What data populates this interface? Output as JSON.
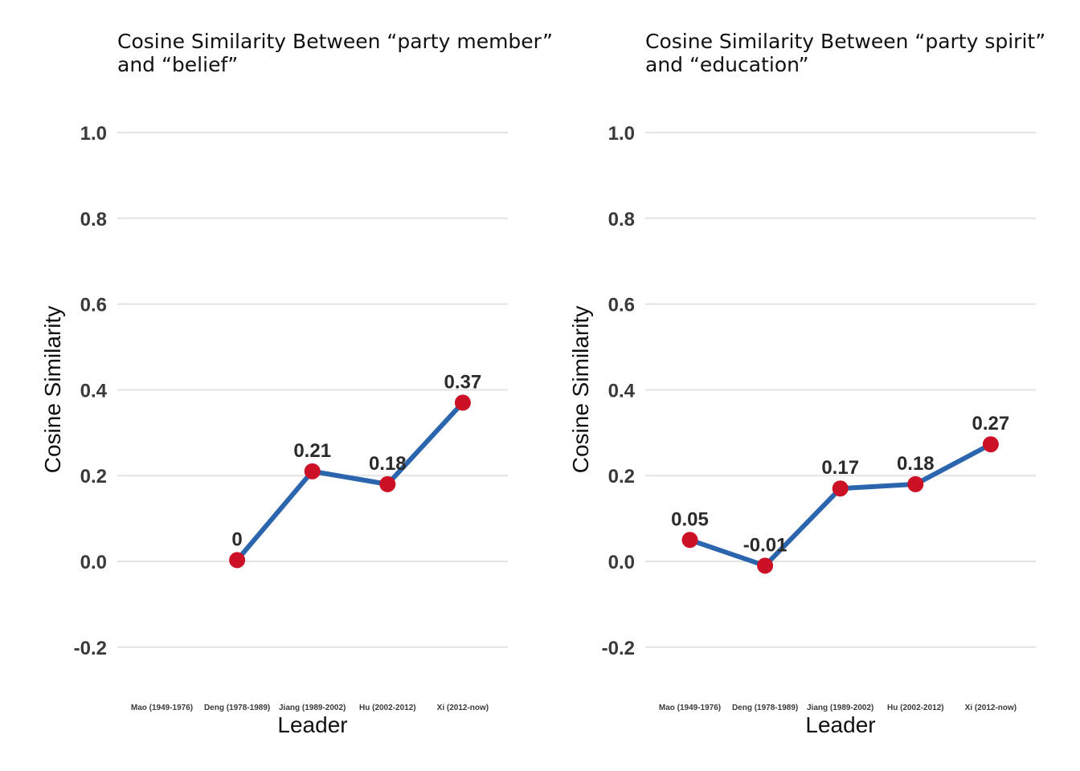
{
  "colors": {
    "line": "#2b65ad",
    "point": "#cc1126",
    "grid": "#e3e3e3"
  },
  "chart_data": [
    {
      "type": "line",
      "title_line1": "Cosine Similarity Between “party member”",
      "title_line2": "and “belief”",
      "xlabel": "Leader",
      "ylabel": "Cosine Similarity",
      "categories": [
        "Mao (1949-1976)",
        "Deng (1978-1989)",
        "Jiang (1989-2002)",
        "Hu (2002-2012)",
        "Xi (2012-now)"
      ],
      "values": [
        null,
        0.003,
        0.21,
        0.18,
        0.37
      ],
      "point_labels": [
        "",
        "0",
        "0.21",
        "0.18",
        "0.37"
      ],
      "yticks": [
        "1.0",
        "0.8",
        "0.6",
        "0.4",
        "0.2",
        "0.0",
        "-0.2"
      ],
      "ylim": [
        -0.3,
        1.1
      ],
      "grid": true
    },
    {
      "type": "line",
      "title_line1": "Cosine Similarity Between “party spirit”",
      "title_line2": "and “education”",
      "xlabel": "Leader",
      "ylabel": "Cosine Similarity",
      "categories": [
        "Mao (1949-1976)",
        "Deng (1978-1989)",
        "Jiang (1989-2002)",
        "Hu (2002-2012)",
        "Xi (2012-now)"
      ],
      "values": [
        0.05,
        -0.01,
        0.17,
        0.18,
        0.273
      ],
      "point_labels": [
        "0.05",
        "-0.01",
        "0.17",
        "0.18",
        "0.27"
      ],
      "yticks": [
        "1.0",
        "0.8",
        "0.6",
        "0.4",
        "0.2",
        "0.0",
        "-0.2"
      ],
      "ylim": [
        -0.3,
        1.1
      ],
      "grid": true
    }
  ]
}
